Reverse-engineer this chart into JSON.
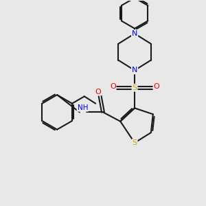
{
  "bg_color": "#e8e8e8",
  "bond_color": "#1a1a1a",
  "S_color": "#ccaa00",
  "N_color": "#0000ee",
  "O_color": "#ee0000",
  "lw": 1.5,
  "dbo": 0.055,
  "xlim": [
    0,
    10
  ],
  "ylim": [
    0,
    10
  ]
}
